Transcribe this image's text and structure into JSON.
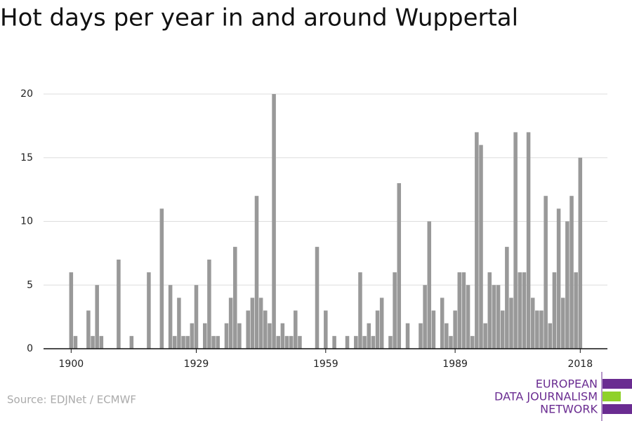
{
  "chart_data": {
    "type": "bar",
    "title": "Hot days per year in and around Wuppertal",
    "x": [
      1900,
      1901,
      1902,
      1903,
      1904,
      1905,
      1906,
      1907,
      1908,
      1909,
      1910,
      1911,
      1912,
      1913,
      1914,
      1915,
      1916,
      1917,
      1918,
      1919,
      1920,
      1921,
      1922,
      1923,
      1924,
      1925,
      1926,
      1927,
      1928,
      1929,
      1930,
      1931,
      1932,
      1933,
      1934,
      1935,
      1936,
      1937,
      1938,
      1939,
      1940,
      1941,
      1942,
      1943,
      1944,
      1945,
      1946,
      1947,
      1948,
      1949,
      1950,
      1951,
      1952,
      1953,
      1954,
      1955,
      1956,
      1957,
      1958,
      1959,
      1960,
      1961,
      1962,
      1963,
      1964,
      1965,
      1966,
      1967,
      1968,
      1969,
      1970,
      1971,
      1972,
      1973,
      1974,
      1975,
      1976,
      1977,
      1978,
      1979,
      1980,
      1981,
      1982,
      1983,
      1984,
      1985,
      1986,
      1987,
      1988,
      1989,
      1990,
      1991,
      1992,
      1993,
      1994,
      1995,
      1996,
      1997,
      1998,
      1999,
      2000,
      2001,
      2002,
      2003,
      2004,
      2005,
      2006,
      2007,
      2008,
      2009,
      2010,
      2011,
      2012,
      2013,
      2014,
      2015,
      2016,
      2017,
      2018
    ],
    "values": [
      6,
      1,
      0,
      0,
      3,
      1,
      5,
      1,
      0,
      0,
      0,
      7,
      0,
      0,
      1,
      0,
      0,
      0,
      6,
      0,
      0,
      11,
      0,
      5,
      1,
      4,
      1,
      1,
      2,
      5,
      0,
      2,
      7,
      1,
      1,
      0,
      2,
      4,
      8,
      2,
      0,
      3,
      4,
      12,
      4,
      3,
      2,
      20,
      1,
      2,
      1,
      1,
      3,
      1,
      0,
      0,
      0,
      8,
      0,
      3,
      0,
      1,
      0,
      0,
      1,
      0,
      1,
      6,
      1,
      2,
      1,
      3,
      4,
      0,
      1,
      6,
      13,
      0,
      2,
      0,
      0,
      2,
      5,
      10,
      3,
      0,
      4,
      2,
      1,
      3,
      6,
      6,
      5,
      1,
      17,
      16,
      2,
      6,
      5,
      5,
      3,
      8,
      4,
      17,
      6,
      6,
      17,
      4,
      3,
      3,
      12,
      2,
      6,
      11,
      4,
      10,
      12,
      6,
      15
    ],
    "color": "#999999",
    "xlim": [
      1893.6,
      2024.3
    ],
    "xticks": [
      1900,
      1929,
      1959,
      1989,
      2018
    ],
    "ylim": [
      0,
      20
    ],
    "yticks": [
      0,
      5,
      10,
      15,
      20
    ],
    "grid": true,
    "source": "Source: EDJNet / ECMWF",
    "logo": [
      "EUROPEAN",
      "DATA JOURNALISM",
      "NETWORK"
    ]
  }
}
